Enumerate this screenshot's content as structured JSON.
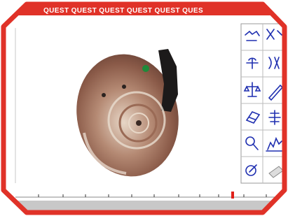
{
  "header": {
    "banner": "QUEST  QUEST  QUEST  QUEST  QUEST  QUES"
  }
}
